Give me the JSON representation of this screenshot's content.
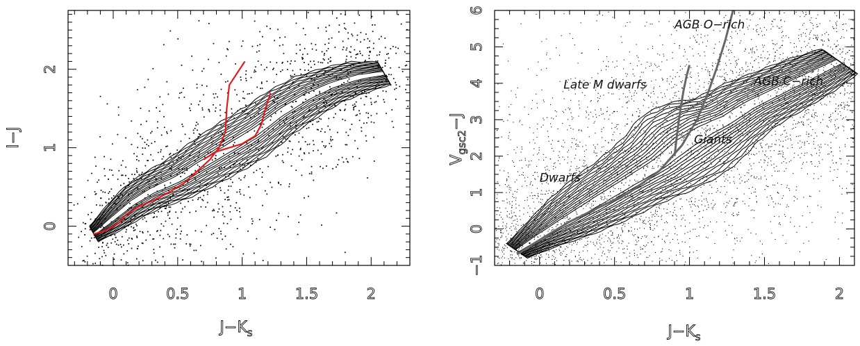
{
  "chart_data": [
    {
      "type": "contour",
      "xlabel": "J−K",
      "xlabel_sub": "s",
      "ylabel": "I−J",
      "xlim": [
        -0.35,
        2.3
      ],
      "ylim": [
        -0.5,
        2.75
      ],
      "xticks": [
        0,
        0.5,
        1,
        1.5,
        2
      ],
      "xtick_labels": [
        "0",
        "0.5",
        "1",
        "1.5",
        "2"
      ],
      "yticks": [
        0,
        1,
        2
      ],
      "ytick_labels": [
        "0",
        "1",
        "2"
      ],
      "contour_color": "#000000",
      "overlay_color": "#e8191c",
      "density_ridges": [
        {
          "x": [
            -0.15,
            0.0,
            0.15,
            0.3,
            0.5,
            0.7,
            0.9,
            1.1,
            1.3,
            1.5,
            1.7,
            1.9,
            2.1
          ],
          "y": [
            -0.1,
            0.1,
            0.3,
            0.45,
            0.6,
            0.8,
            1.0,
            1.2,
            1.45,
            1.65,
            1.8,
            1.9,
            1.95
          ],
          "w": [
            0.1,
            0.16,
            0.2,
            0.22,
            0.25,
            0.28,
            0.3,
            0.3,
            0.28,
            0.26,
            0.22,
            0.2,
            0.15
          ]
        }
      ],
      "overlay_tracks": [
        {
          "x": [
            -0.15,
            -0.05,
            0.05,
            0.1,
            0.2,
            0.3,
            0.42,
            0.55,
            0.65,
            0.75,
            0.82,
            0.87,
            0.88,
            0.9,
            1.02
          ],
          "y": [
            -0.1,
            -0.05,
            0.05,
            0.15,
            0.25,
            0.32,
            0.42,
            0.55,
            0.7,
            0.85,
            1.0,
            1.2,
            1.5,
            1.8,
            2.1
          ]
        },
        {
          "x": [
            0.7,
            0.8,
            0.9,
            1.0,
            1.1,
            1.15,
            1.18,
            1.22
          ],
          "y": [
            0.85,
            0.95,
            1.0,
            1.05,
            1.15,
            1.3,
            1.5,
            1.7
          ]
        }
      ]
    },
    {
      "type": "contour",
      "xlabel": "J−K",
      "xlabel_sub": "s",
      "ylabel": "V",
      "ylabel_sub": "gsc2",
      "ylabel_tail": "−J",
      "xlim": [
        -0.3,
        2.1
      ],
      "ylim": [
        -1.0,
        6.0
      ],
      "xticks": [
        0,
        0.5,
        1,
        1.5,
        2
      ],
      "xtick_labels": [
        "0",
        "0.5",
        "1",
        "1.5",
        "2"
      ],
      "yticks": [
        -1,
        0,
        1,
        2,
        3,
        4,
        5,
        6
      ],
      "ytick_labels": [
        "−1",
        "0",
        "1",
        "2",
        "3",
        "4",
        "5",
        "6"
      ],
      "contour_color": "#000000",
      "overlay_color": "#666666",
      "density_ridges": [
        {
          "x": [
            -0.15,
            0.0,
            0.2,
            0.4,
            0.6,
            0.8,
            0.95,
            1.1,
            1.25,
            1.4,
            1.6,
            1.8,
            2.0
          ],
          "y": [
            -0.6,
            -0.2,
            0.3,
            0.8,
            1.3,
            1.8,
            2.3,
            2.7,
            3.0,
            3.4,
            3.8,
            4.2,
            4.6
          ],
          "w": [
            0.2,
            0.3,
            0.45,
            0.55,
            0.6,
            0.7,
            0.8,
            0.75,
            0.6,
            0.55,
            0.5,
            0.45,
            0.35
          ]
        }
      ],
      "overlay_tracks": [
        {
          "x": [
            -0.15,
            0.0,
            0.2,
            0.4,
            0.6,
            0.8,
            0.95,
            1.05,
            1.12,
            1.18,
            1.24,
            1.29
          ],
          "y": [
            -0.7,
            -0.3,
            0.2,
            0.6,
            1.0,
            1.6,
            2.3,
            3.0,
            3.7,
            4.4,
            5.2,
            6.0
          ]
        },
        {
          "x": [
            0.9,
            0.92,
            0.94,
            0.96,
            0.98,
            1.0
          ],
          "y": [
            2.0,
            2.7,
            3.3,
            3.8,
            4.2,
            4.5
          ]
        }
      ],
      "annotations": [
        {
          "text": "AGB O−rich",
          "x": 0.9,
          "y": 5.5
        },
        {
          "text": "Late M dwarfs",
          "x": 0.16,
          "y": 3.85
        },
        {
          "text": "AGB C−rich",
          "x": 1.43,
          "y": 3.95
        },
        {
          "text": "Giants",
          "x": 1.03,
          "y": 2.35
        },
        {
          "text": "Dwarfs",
          "x": 0.0,
          "y": 1.3
        }
      ]
    }
  ]
}
